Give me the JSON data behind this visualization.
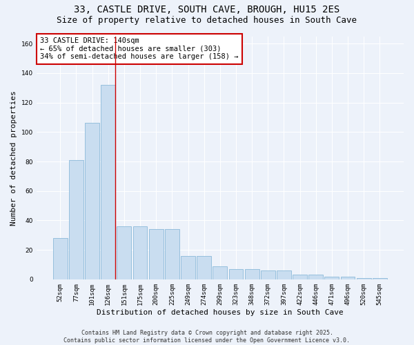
{
  "title_line1": "33, CASTLE DRIVE, SOUTH CAVE, BROUGH, HU15 2ES",
  "title_line2": "Size of property relative to detached houses in South Cave",
  "xlabel": "Distribution of detached houses by size in South Cave",
  "ylabel": "Number of detached properties",
  "categories": [
    "52sqm",
    "77sqm",
    "101sqm",
    "126sqm",
    "151sqm",
    "175sqm",
    "200sqm",
    "225sqm",
    "249sqm",
    "274sqm",
    "299sqm",
    "323sqm",
    "348sqm",
    "372sqm",
    "397sqm",
    "422sqm",
    "446sqm",
    "471sqm",
    "496sqm",
    "520sqm",
    "545sqm"
  ],
  "values": [
    28,
    81,
    106,
    132,
    36,
    36,
    34,
    34,
    16,
    16,
    9,
    7,
    7,
    6,
    6,
    3,
    3,
    2,
    2,
    1,
    1
  ],
  "bar_color": "#c9ddf0",
  "bar_edge_color": "#7aafd4",
  "highlight_bar_index": 3,
  "highlight_line_color": "#cc0000",
  "annotation_text": "33 CASTLE DRIVE: 140sqm\n← 65% of detached houses are smaller (303)\n34% of semi-detached houses are larger (158) →",
  "annotation_box_color": "#ffffff",
  "annotation_box_edge_color": "#cc0000",
  "ylim": [
    0,
    165
  ],
  "yticks": [
    0,
    20,
    40,
    60,
    80,
    100,
    120,
    140,
    160
  ],
  "footer_line1": "Contains HM Land Registry data © Crown copyright and database right 2025.",
  "footer_line2": "Contains public sector information licensed under the Open Government Licence v3.0.",
  "background_color": "#edf2fa",
  "grid_color": "#ffffff",
  "title_fontsize": 10,
  "subtitle_fontsize": 9,
  "axis_label_fontsize": 8,
  "tick_fontsize": 6.5,
  "annotation_fontsize": 7.5,
  "footer_fontsize": 6
}
